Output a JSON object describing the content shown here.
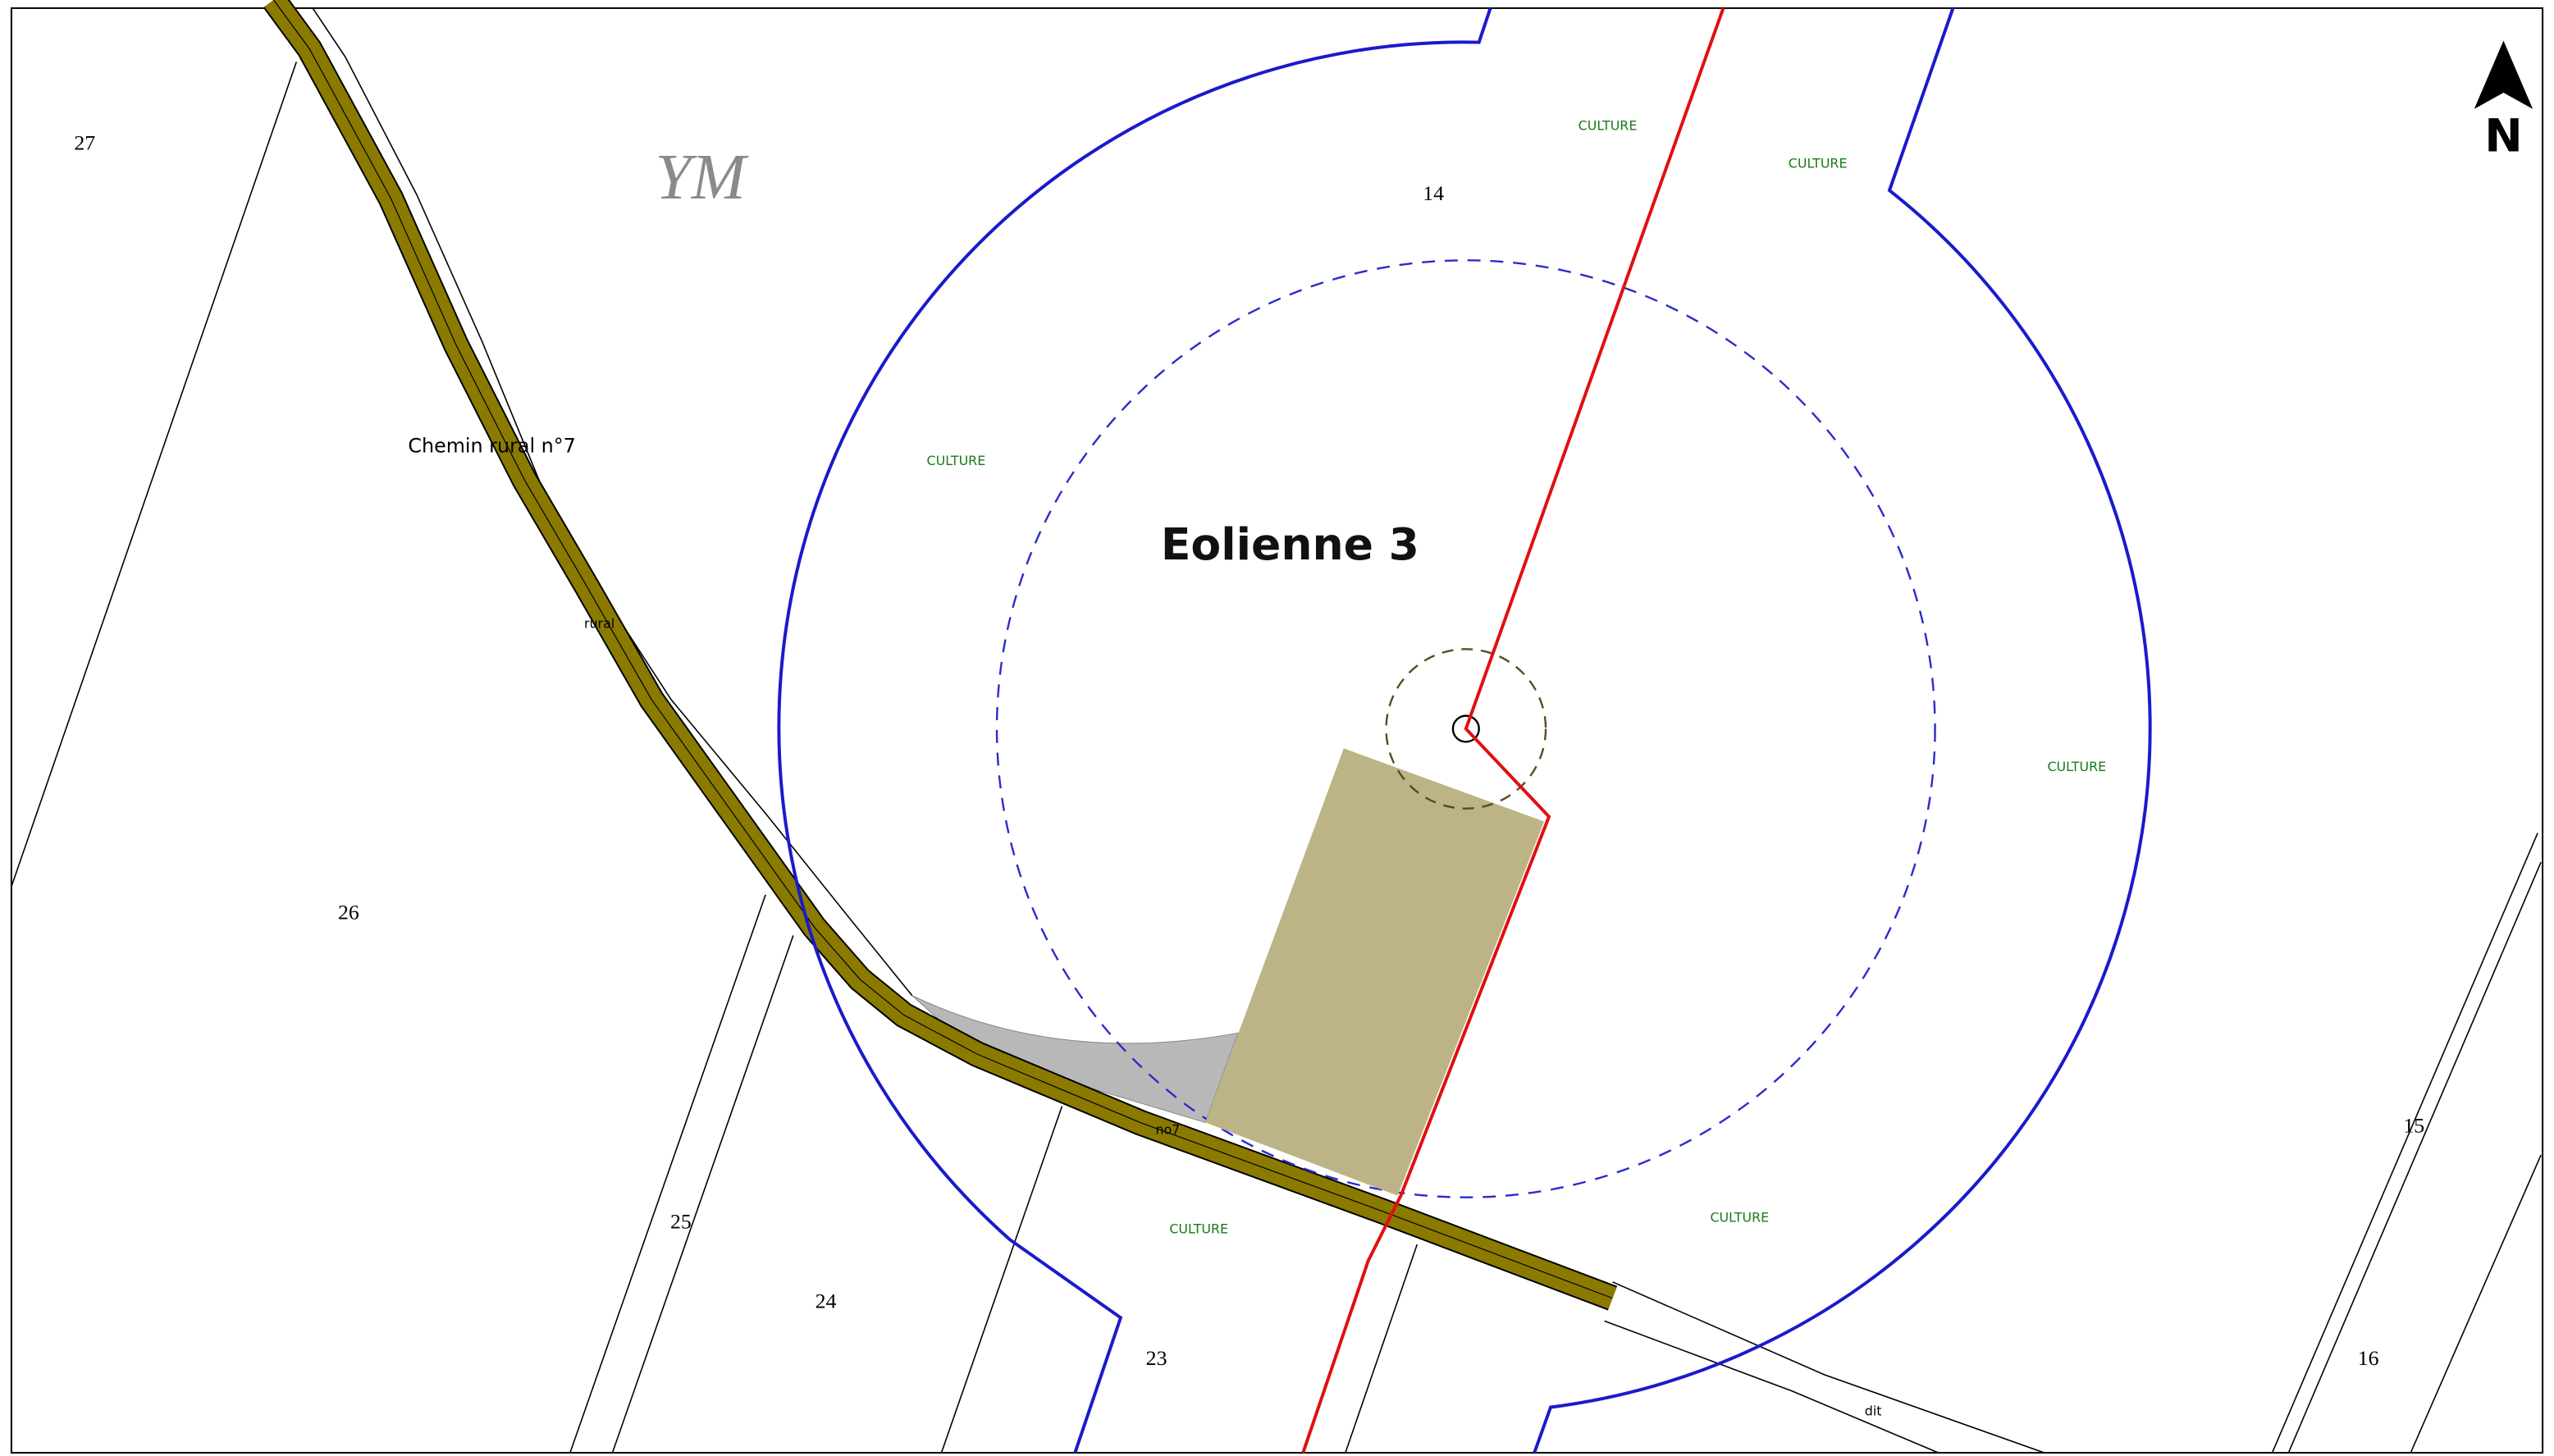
{
  "section": "YM",
  "turbine": "Eolienne 3",
  "road_label": "Chemin rural n°7",
  "road_fragments": [
    "rural",
    "no7",
    "dit"
  ],
  "parcels": [
    "27",
    "14",
    "26",
    "25",
    "24",
    "23",
    "15",
    "16"
  ],
  "land_use": [
    "CULTURE",
    "CULTURE",
    "CULTURE",
    "CULTURE",
    "CULTURE",
    "CULTURE"
  ],
  "north": "N"
}
